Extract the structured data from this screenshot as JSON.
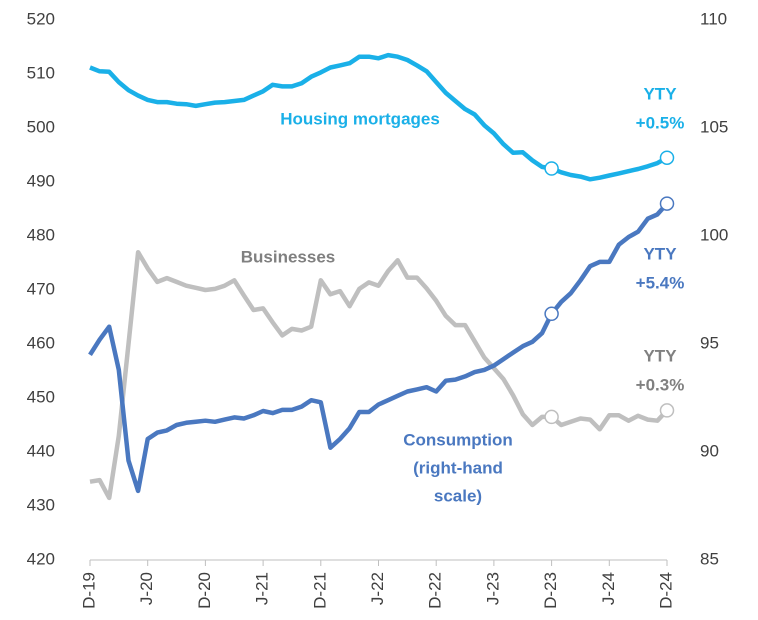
{
  "chart_data": {
    "type": "line",
    "categories": [
      "D-19",
      null,
      null,
      null,
      null,
      null,
      "J-20",
      null,
      null,
      null,
      null,
      null,
      "D-20",
      null,
      null,
      null,
      null,
      null,
      "J-21",
      null,
      null,
      null,
      null,
      null,
      "D-21",
      null,
      null,
      null,
      null,
      null,
      "J-22",
      null,
      null,
      null,
      null,
      null,
      "D-22",
      null,
      null,
      null,
      null,
      null,
      "J-23",
      null,
      null,
      null,
      null,
      null,
      "D-23",
      null,
      null,
      null,
      null,
      null,
      "J-24",
      null,
      null,
      null,
      null,
      null,
      "D-24"
    ],
    "ylim": [
      420,
      520
    ],
    "yticks": [
      420,
      430,
      440,
      450,
      460,
      470,
      480,
      490,
      500,
      510,
      520
    ],
    "y2lim": [
      85,
      110
    ],
    "y2ticks": [
      85,
      90,
      95,
      100,
      105,
      110
    ],
    "markers": [
      "D-23",
      "D-24"
    ],
    "series": [
      {
        "name": "Housing mortgages",
        "color": "#1ab0e8",
        "axis": "y",
        "values": [
          511.2,
          510.5,
          510.4,
          508.5,
          507,
          506,
          505.2,
          504.8,
          504.8,
          504.5,
          504.4,
          504.1,
          504.4,
          504.7,
          504.8,
          505,
          505.2,
          506,
          506.8,
          508,
          507.7,
          507.7,
          508.3,
          509.5,
          510.3,
          511.2,
          511.6,
          512,
          513.2,
          513.2,
          512.9,
          513.5,
          513.2,
          512.6,
          511.6,
          510.5,
          508.5,
          506.5,
          505,
          503.5,
          502.5,
          500.5,
          499,
          497,
          495.4,
          495.5,
          494,
          492.8,
          492.5,
          491.8,
          491.3,
          491,
          490.5,
          490.8,
          491.2,
          491.6,
          492,
          492.4,
          492.9,
          493.5,
          494.5
        ]
      },
      {
        "name": "Businesses",
        "color": "#bfbfbf",
        "axis": "y",
        "values": [
          434.5,
          434.8,
          431.5,
          443,
          460,
          477,
          474,
          471.5,
          472.2,
          471.5,
          470.8,
          470.4,
          470,
          470.2,
          470.8,
          471.8,
          469,
          466.3,
          466.6,
          464,
          461.6,
          462.8,
          462.5,
          463.2,
          471.8,
          469.2,
          469.8,
          467,
          470.2,
          471.4,
          470.8,
          473.5,
          475.5,
          472.3,
          472.3,
          470.3,
          468,
          465.2,
          463.5,
          463.5,
          460.5,
          457.5,
          455.5,
          453.5,
          450.5,
          447,
          445,
          446.5,
          446.5,
          445,
          445.6,
          446.2,
          446,
          444.2,
          446.8,
          446.8,
          445.8,
          446.7,
          446,
          445.8,
          447.7
        ]
      },
      {
        "name": "Consumption",
        "color": "#4a78c0",
        "axis": "y2",
        "values": [
          94.5,
          95.2,
          95.8,
          93.8,
          89.6,
          88.2,
          90.6,
          90.9,
          91.0,
          91.25,
          91.35,
          91.4,
          91.45,
          91.4,
          91.5,
          91.6,
          91.55,
          91.7,
          91.9,
          91.8,
          91.95,
          91.95,
          92.1,
          92.4,
          92.3,
          90.2,
          90.6,
          91.1,
          91.85,
          91.85,
          92.2,
          92.4,
          92.6,
          92.8,
          92.9,
          93.0,
          92.8,
          93.3,
          93.35,
          93.5,
          93.7,
          93.8,
          94.0,
          94.3,
          94.6,
          94.9,
          95.1,
          95.5,
          96.4,
          96.95,
          97.35,
          97.95,
          98.6,
          98.8,
          98.8,
          99.6,
          99.95,
          100.2,
          100.8,
          101.0,
          101.5
        ]
      }
    ],
    "annotations": [
      {
        "text": "Housing mortgages",
        "color": "#1ab0e8"
      },
      {
        "text": "Businesses",
        "color": "#808080"
      },
      {
        "text": "Consumption",
        "color": "#4a78c0"
      },
      {
        "text": "(right-hand",
        "color": "#4a78c0"
      },
      {
        "text": "scale)",
        "color": "#4a78c0"
      },
      {
        "text": "YTY",
        "color": "#1ab0e8"
      },
      {
        "text": "+0.5%",
        "color": "#1ab0e8"
      },
      {
        "text": "YTY",
        "color": "#4a78c0"
      },
      {
        "text": "+5.4%",
        "color": "#4a78c0"
      },
      {
        "text": "YTY",
        "color": "#808080"
      },
      {
        "text": "+0.3%",
        "color": "#808080"
      }
    ]
  }
}
